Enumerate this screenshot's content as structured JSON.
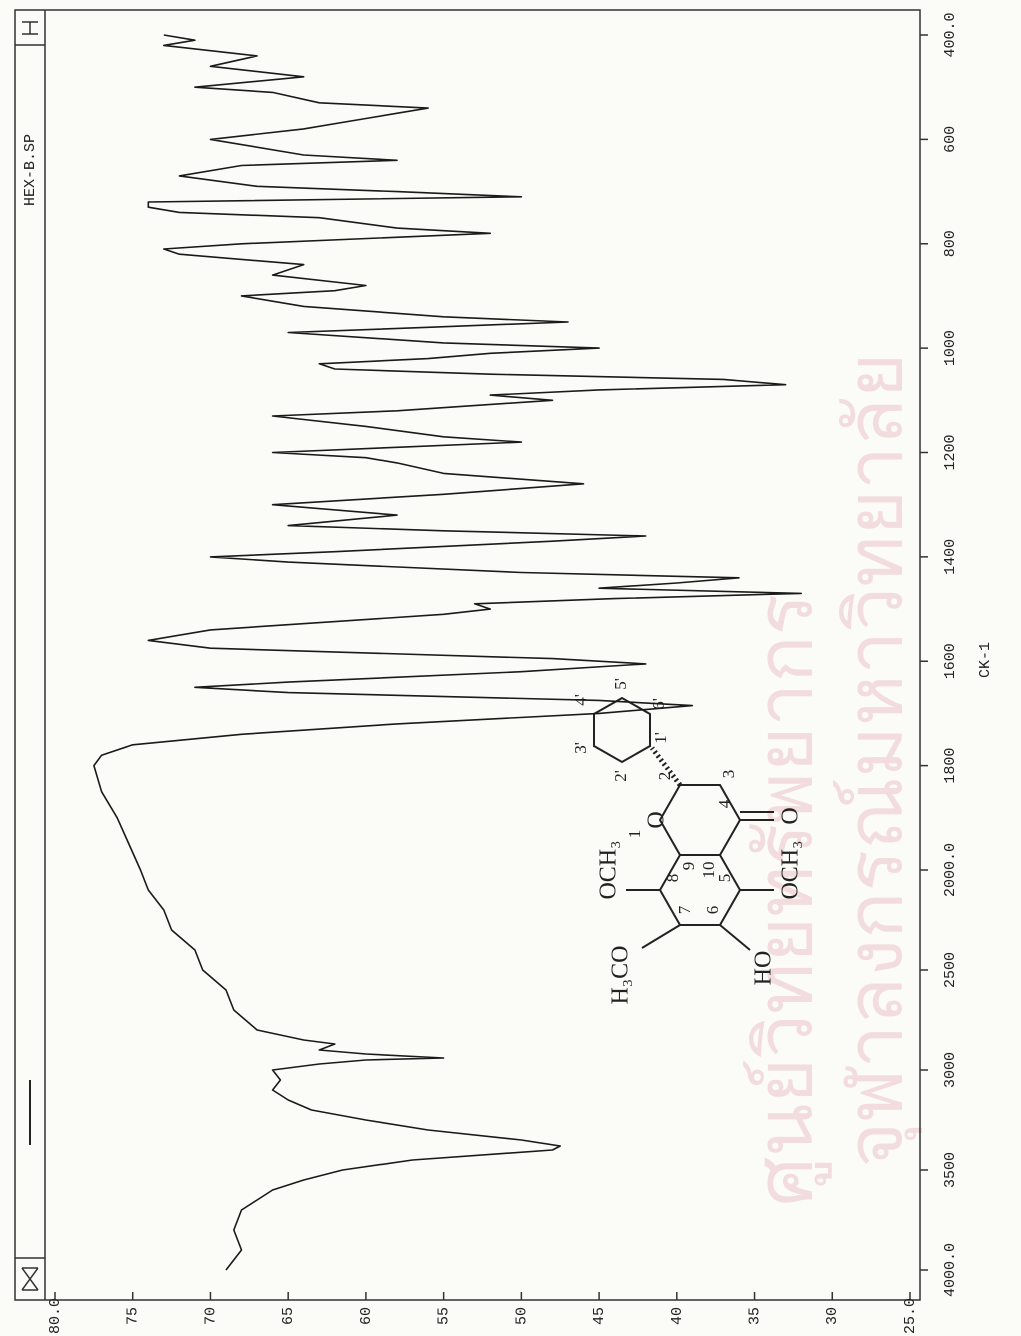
{
  "chart_data": {
    "type": "line",
    "title": "HEX-B.SP",
    "subtitle": "CK-1",
    "color": "#1a1a1a",
    "xlim": [
      4000,
      400
    ],
    "x_scale_break": 2000,
    "xticks": [
      {
        "value": 4000,
        "label": "4000.0"
      },
      3500,
      3000,
      2500,
      {
        "value": 2000,
        "label": "2000.0"
      },
      1800,
      1600,
      1400,
      1200,
      1000,
      800,
      600,
      {
        "value": 400,
        "label": "400.0"
      }
    ],
    "ylim": [
      25,
      80
    ],
    "yticks": [
      {
        "value": 80,
        "label": "80.0"
      },
      75,
      70,
      65,
      60,
      55,
      50,
      45,
      40,
      35,
      30,
      {
        "value": 25,
        "label": "25.0"
      }
    ],
    "x": [
      4000,
      3900,
      3800,
      3700,
      3650,
      3600,
      3550,
      3500,
      3450,
      3400,
      3380,
      3350,
      3300,
      3250,
      3200,
      3150,
      3100,
      3050,
      3000,
      2970,
      2950,
      2940,
      2920,
      2900,
      2870,
      2850,
      2800,
      2700,
      2600,
      2500,
      2400,
      2300,
      2200,
      2100,
      2000,
      1900,
      1850,
      1800,
      1780,
      1760,
      1740,
      1720,
      1700,
      1685,
      1675,
      1660,
      1650,
      1640,
      1620,
      1605,
      1595,
      1575,
      1560,
      1540,
      1510,
      1500,
      1490,
      1480,
      1470,
      1460,
      1450,
      1440,
      1430,
      1410,
      1400,
      1390,
      1370,
      1360,
      1350,
      1340,
      1320,
      1300,
      1280,
      1260,
      1240,
      1220,
      1210,
      1200,
      1190,
      1180,
      1170,
      1150,
      1130,
      1120,
      1100,
      1090,
      1080,
      1070,
      1060,
      1050,
      1040,
      1030,
      1020,
      1010,
      1000,
      990,
      970,
      960,
      950,
      940,
      920,
      900,
      890,
      880,
      860,
      840,
      820,
      810,
      800,
      780,
      770,
      750,
      740,
      730,
      720,
      710,
      700,
      690,
      670,
      650,
      640,
      630,
      600,
      580,
      560,
      540,
      530,
      510,
      500,
      480,
      460,
      440,
      420,
      410,
      400
    ],
    "values": [
      69,
      68,
      68.5,
      68,
      67,
      66,
      64,
      61.5,
      57,
      48,
      47.5,
      50,
      56,
      60,
      63.5,
      65,
      66,
      65.5,
      66,
      63,
      60,
      55,
      60,
      63,
      62,
      64,
      67,
      68.5,
      69,
      70.5,
      71,
      72.5,
      73,
      74,
      74.5,
      76,
      77,
      77.5,
      77,
      75,
      68,
      58,
      45,
      39,
      45,
      65,
      71,
      65,
      50,
      42,
      48,
      70,
      74,
      70,
      55,
      52,
      53,
      44,
      32,
      45,
      40,
      36,
      50,
      65,
      70,
      62,
      48,
      42,
      55,
      65,
      58,
      66,
      55,
      46,
      55,
      58,
      60,
      66,
      58,
      50,
      55,
      60,
      66,
      58,
      48,
      52,
      45,
      33,
      37,
      52,
      62,
      63,
      56,
      52,
      45,
      55,
      65,
      56,
      47,
      55,
      64,
      68,
      62,
      60,
      66,
      64,
      72,
      73,
      68,
      52,
      58,
      63,
      72,
      74,
      74,
      50,
      58,
      67,
      72,
      68,
      58,
      64,
      70,
      64,
      60,
      56,
      63,
      66,
      71,
      64,
      70,
      67,
      73,
      71,
      73
    ],
    "grid": false
  },
  "structure": {
    "labels": [
      "H₃CO",
      "OCH₃",
      "HO",
      "OCH₃",
      "O",
      "O",
      "1",
      "2",
      "3",
      "4",
      "5",
      "6",
      "7",
      "8",
      "9",
      "10",
      "1'",
      "2'",
      "3'",
      "4'",
      "5'",
      "6'"
    ]
  },
  "watermark": [
    "ศูนย์วิทยทรัพยากร",
    "จุฬาลงกรณ์มหาวิทยาลัย"
  ]
}
